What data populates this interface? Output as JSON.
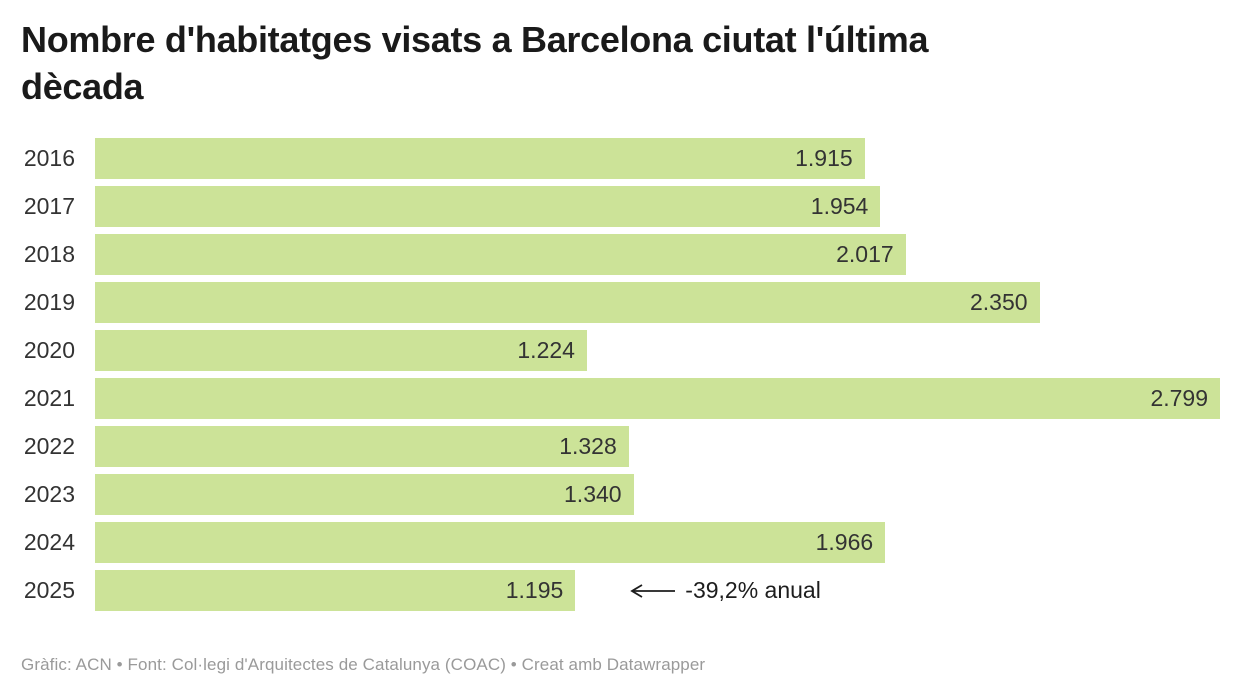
{
  "header": {
    "title_lines": [
      "Nombre d'habitatges visats a Barcelona ciutat l'última",
      "dècada"
    ]
  },
  "chart_data": {
    "type": "bar",
    "orientation": "horizontal",
    "title": "Nombre d'habitatges visats a Barcelona ciutat l'última dècada",
    "categories": [
      "2016",
      "2017",
      "2018",
      "2019",
      "2020",
      "2021",
      "2022",
      "2023",
      "2024",
      "2025"
    ],
    "values": [
      1915,
      1954,
      2017,
      2350,
      1224,
      2799,
      1328,
      1340,
      1966,
      1195
    ],
    "value_labels": [
      "1.915",
      "1.954",
      "2.017",
      "2.350",
      "1.224",
      "2.799",
      "1.328",
      "1.340",
      "1.966",
      "1.195"
    ],
    "xlim": [
      0,
      2799
    ],
    "grid": false,
    "legend": false,
    "bar_color": "#cce398",
    "annotation": {
      "text": "-39,2% anual",
      "target_year": "2025",
      "arrow": "left"
    }
  },
  "footer": {
    "text": "Gràfic: ACN • Font: Col·legi d'Arquitectes de Catalunya (COAC) • Creat amb Datawrapper"
  },
  "colors": {
    "bar": "#cce398",
    "title": "#1a1a1a",
    "labels": "#333333",
    "annotation": "#1d1d1d",
    "footer": "#9a9a9a",
    "background": "#ffffff"
  }
}
